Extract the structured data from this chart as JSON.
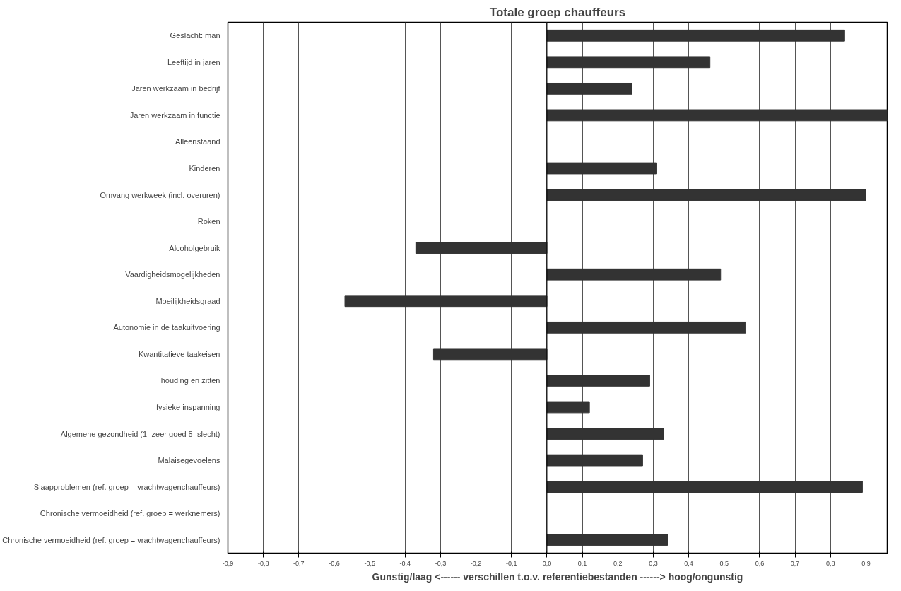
{
  "chart_data": {
    "type": "bar",
    "orientation": "horizontal",
    "title": "Totale groep chauffeurs",
    "xlabel": "Gunstig/laag <------ verschillen t.o.v. referentiebestanden ------> hoog/ongunstig",
    "categories": [
      "Geslacht: man",
      "Leeftijd in jaren",
      "Jaren werkzaam in bedrijf",
      "Jaren werkzaam in functie",
      "Alleenstaand",
      "Kinderen",
      "Omvang werkweek (incl. overuren)",
      "Roken",
      "Alcoholgebruik",
      "Vaardigheidsmogelijkheden",
      "Moeilijkheidsgraad",
      "Autonomie in de taakuitvoering",
      "Kwantitatieve taakeisen",
      "houding en zitten",
      "fysieke inspanning",
      "Algemene gezondheid (1=zeer goed 5=slecht)",
      "Malaisegevoelens",
      "Slaapproblemen (ref. groep = vrachtwagenchauffeurs)",
      "Chronische vermoeidheid (ref. groep = werknemers)",
      "Chronische vermoeidheid (ref. groep = vrachtwagenchauffeurs)"
    ],
    "series": [
      {
        "color": "#333333",
        "values": [
          0.84,
          0.46,
          0.24,
          0.96,
          null,
          0.31,
          0.9,
          null,
          -0.37,
          0.49,
          -0.57,
          0.56,
          -0.32,
          0.29,
          0.12,
          0.33,
          0.27,
          0.89,
          null,
          0.34
        ]
      }
    ],
    "xlim": [
      -0.9,
      0.96
    ],
    "xticks": [
      {
        "value": -0.9,
        "label": "-0,9"
      },
      {
        "value": -0.8,
        "label": "-0,8"
      },
      {
        "value": -0.7,
        "label": "-0,7"
      },
      {
        "value": -0.6,
        "label": "-0,6"
      },
      {
        "value": -0.5,
        "label": "-0,5"
      },
      {
        "value": -0.4,
        "label": "-0,4"
      },
      {
        "value": -0.3,
        "label": "-0,3"
      },
      {
        "value": -0.2,
        "label": "-0,2"
      },
      {
        "value": -0.1,
        "label": "-0,1"
      },
      {
        "value": 0,
        "label": "0,0"
      },
      {
        "value": 0.1,
        "label": "0,1"
      },
      {
        "value": 0.2,
        "label": "0,2"
      },
      {
        "value": 0.3,
        "label": "0,3"
      },
      {
        "value": 0.4,
        "label": "0,4"
      },
      {
        "value": 0.5,
        "label": "0,5"
      },
      {
        "value": 0.6,
        "label": "0,6"
      },
      {
        "value": 0.7,
        "label": "0,7"
      },
      {
        "value": 0.8,
        "label": "0,8"
      },
      {
        "value": 0.9,
        "label": "0,9"
      }
    ],
    "grid": "x"
  }
}
